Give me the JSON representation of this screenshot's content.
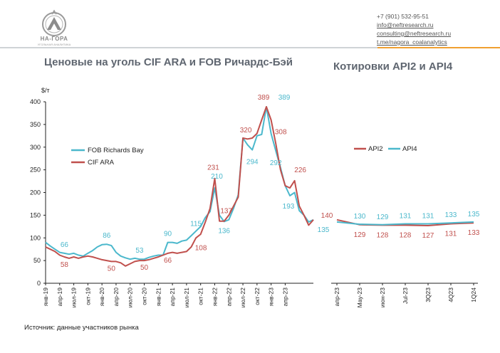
{
  "header": {
    "logo_name": "НА-ГОРА",
    "logo_subtitle": "УГОЛЬНАЯ АНАЛИТИКА",
    "contacts": [
      "+7 (901) 532-95-51",
      "info@neftresearch.ru",
      "consulting@neftresearch.ru",
      "t.me/nagora_coalanalytics"
    ]
  },
  "titles": {
    "left": "Ценовые на уголь CIF ARA и FOB Ричардс-Бэй",
    "right": "Котировки API2 и API4"
  },
  "source": "Источник: данные участников рынка",
  "colors": {
    "fob": "#4bb8cc",
    "cif": "#c0504d",
    "api2": "#c0504d",
    "api4": "#4bb8cc"
  },
  "chart_data": [
    {
      "type": "line",
      "title": "Ценовые на уголь CIF ARA и FOB Ричардс-Бэй",
      "ylabel": "$/т",
      "ylim": [
        0,
        400
      ],
      "yticks": [
        0,
        50,
        100,
        150,
        200,
        250,
        300,
        350,
        400
      ],
      "x_tick_labels": [
        "янв-19",
        "апр-19",
        "июл-19",
        "окт-19",
        "янв-20",
        "апр-20",
        "июл-20",
        "окт-20",
        "янв-21",
        "апр-21",
        "июл-21",
        "окт-21",
        "янв-22",
        "апр-22",
        "июл-22",
        "окт-22",
        "янв-23",
        "апр-23"
      ],
      "x_start": "янв-19",
      "legend_position": "left-middle",
      "series": [
        {
          "name": "FOB Richards Bay",
          "color": "#4bb8cc",
          "values": [
            90,
            82,
            75,
            68,
            66,
            64,
            66,
            62,
            60,
            66,
            72,
            80,
            85,
            86,
            83,
            68,
            60,
            56,
            53,
            55,
            53,
            53,
            57,
            60,
            62,
            62,
            90,
            90,
            88,
            93,
            95,
            105,
            115,
            125,
            145,
            158,
            210,
            150,
            136,
            140,
            165,
            195,
            320,
            305,
            294,
            325,
            328,
            389,
            330,
            292,
            255,
            215,
            193,
            200,
            160,
            150,
            135,
            140
          ]
        },
        {
          "name": "CIF ARA",
          "color": "#c0504d",
          "values": [
            80,
            75,
            70,
            62,
            58,
            55,
            58,
            55,
            58,
            60,
            58,
            55,
            52,
            50,
            48,
            48,
            45,
            38,
            43,
            48,
            50,
            50,
            52,
            55,
            58,
            62,
            66,
            68,
            66,
            68,
            70,
            80,
            100,
            108,
            135,
            165,
            231,
            137,
            137,
            150,
            170,
            190,
            320,
            318,
            320,
            330,
            360,
            389,
            360,
            308,
            250,
            215,
            210,
            226,
            170,
            150,
            128,
            140
          ]
        }
      ],
      "annotations": [
        {
          "series": "FOB Richards Bay",
          "label": "66"
        },
        {
          "series": "FOB Richards Bay",
          "label": "86"
        },
        {
          "series": "FOB Richards Bay",
          "label": "53"
        },
        {
          "series": "FOB Richards Bay",
          "label": "90"
        },
        {
          "series": "FOB Richards Bay",
          "label": "115"
        },
        {
          "series": "FOB Richards Bay",
          "label": "210"
        },
        {
          "series": "FOB Richards Bay",
          "label": "136"
        },
        {
          "series": "FOB Richards Bay",
          "label": "294"
        },
        {
          "series": "FOB Richards Bay",
          "label": "292"
        },
        {
          "series": "FOB Richards Bay",
          "label": "389"
        },
        {
          "series": "FOB Richards Bay",
          "label": "193"
        },
        {
          "series": "FOB Richards Bay",
          "label": "135"
        },
        {
          "series": "CIF ARA",
          "label": "58"
        },
        {
          "series": "CIF ARA",
          "label": "50"
        },
        {
          "series": "CIF ARA",
          "label": "50"
        },
        {
          "series": "CIF ARA",
          "label": "66"
        },
        {
          "series": "CIF ARA",
          "label": "108"
        },
        {
          "series": "CIF ARA",
          "label": "231"
        },
        {
          "series": "CIF ARA",
          "label": "137"
        },
        {
          "series": "CIF ARA",
          "label": "320"
        },
        {
          "series": "CIF ARA",
          "label": "389"
        },
        {
          "series": "CIF ARA",
          "label": "308"
        },
        {
          "series": "CIF ARA",
          "label": "226"
        },
        {
          "series": "CIF ARA",
          "label": "140"
        }
      ]
    },
    {
      "type": "line",
      "title": "Котировки API2 и API4",
      "categories": [
        "апр-23",
        "May-23",
        "июн-23",
        "Jul-23",
        "3Q23",
        "4Q23",
        "1Q24"
      ],
      "ylim": [
        0,
        400
      ],
      "legend_position": "top",
      "series": [
        {
          "name": "API2",
          "color": "#c0504d",
          "values": [
            140,
            129,
            128,
            128,
            127,
            131,
            133
          ]
        },
        {
          "name": "API4",
          "color": "#4bb8cc",
          "values": [
            135,
            130,
            129,
            131,
            131,
            133,
            135
          ]
        }
      ],
      "labels": {
        "API4": [
          "130",
          "129",
          "131",
          "131",
          "133",
          "135"
        ],
        "API2": [
          "129",
          "128",
          "128",
          "127",
          "131",
          "133"
        ]
      }
    }
  ]
}
